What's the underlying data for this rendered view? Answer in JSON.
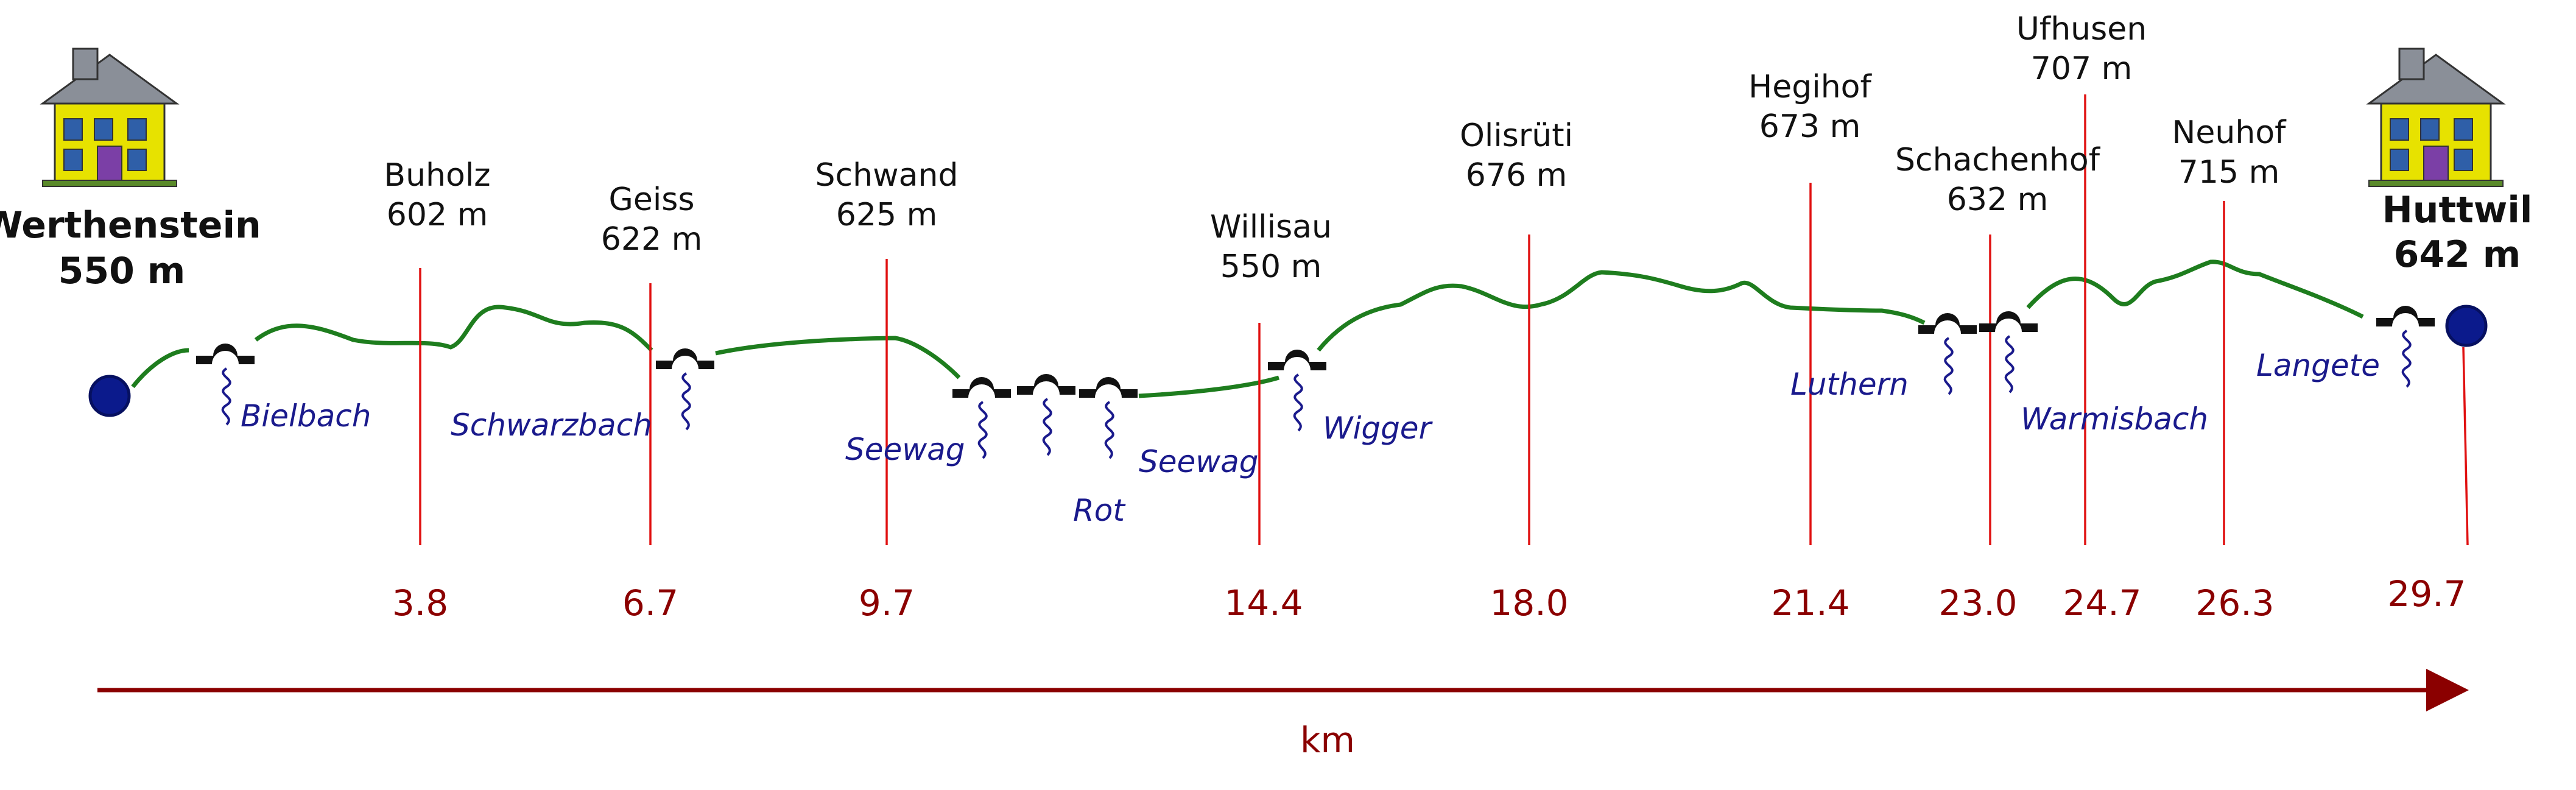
{
  "start": {
    "name": "Werthenstein",
    "elevation": "550 m"
  },
  "end": {
    "name": "Huttwil",
    "elevation": "642 m"
  },
  "waypoints": [
    {
      "name": "Buholz",
      "elevation": "602 m",
      "km": "3.8"
    },
    {
      "name": "Geiss",
      "elevation": "622 m",
      "km": "6.7"
    },
    {
      "name": "Schwand",
      "elevation": "625 m",
      "km": "9.7"
    },
    {
      "name": "Willisau",
      "elevation": "550 m",
      "km": "14.4"
    },
    {
      "name": "Olisrüti",
      "elevation": "676 m",
      "km": "18.0"
    },
    {
      "name": "Hegihof",
      "elevation": "673 m",
      "km": "21.4"
    },
    {
      "name": "Schachenhof",
      "elevation": "632 m",
      "km": "23.0"
    },
    {
      "name": "Ufhusen",
      "elevation": "707 m",
      "km": "24.7"
    },
    {
      "name": "Neuhof",
      "elevation": "715 m",
      "km": "26.3"
    }
  ],
  "end_km": "29.7",
  "streams": [
    "Bielbach",
    "Schwarzbach",
    "Seewag",
    "Rot",
    "Seewag",
    "Wigger",
    "Luthern",
    "Warmisbach",
    "Langete"
  ],
  "axis": {
    "unit": "km"
  },
  "colors": {
    "profile": "#1e7d1e",
    "markers": "#e01010",
    "axis": "#8b0000",
    "streams": "#1a1a8c",
    "endpoints": "#0b1a8c",
    "bridges": "#111111"
  },
  "icons": [
    "house-icon",
    "bridge-icon",
    "stream-icon",
    "endpoint-dot-icon"
  ]
}
